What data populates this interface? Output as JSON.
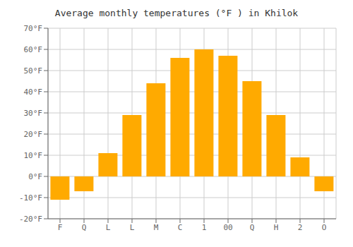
{
  "chart_data": {
    "type": "bar",
    "title": "Average monthly temperatures (°F ) in Khilok",
    "categories": [
      "F",
      "Q",
      "L",
      "L",
      "M",
      "C",
      "1",
      "00",
      "Q",
      "H",
      "2",
      "O"
    ],
    "values": [
      -11,
      -7,
      11,
      29,
      44,
      56,
      60,
      57,
      45,
      29,
      9,
      -7
    ],
    "color": "#FFAA00",
    "ylim": [
      -20,
      70
    ],
    "yticks": [
      {
        "value": -20,
        "label": "-20°F"
      },
      {
        "value": -10,
        "label": "-10°F"
      },
      {
        "value": 0,
        "label": "0°F"
      },
      {
        "value": 10,
        "label": "10°F"
      },
      {
        "value": 20,
        "label": "20°F"
      },
      {
        "value": 30,
        "label": "30°F"
      },
      {
        "value": 40,
        "label": "40°F"
      },
      {
        "value": 50,
        "label": "50°F"
      },
      {
        "value": 60,
        "label": "60°F"
      },
      {
        "value": 70,
        "label": "70°F"
      }
    ],
    "grid": true
  }
}
